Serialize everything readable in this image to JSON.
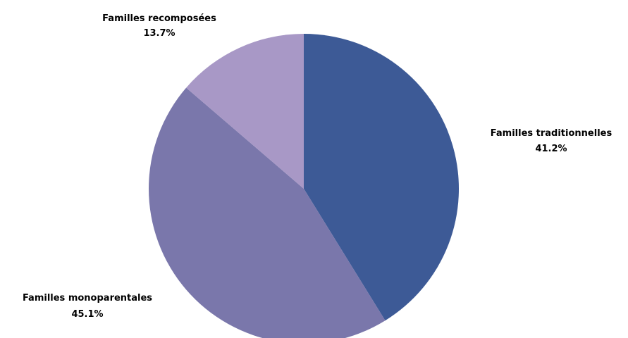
{
  "chart_data": {
    "type": "pie",
    "title": "",
    "slices": [
      {
        "label": "Familles traditionnelles",
        "value": 41.2,
        "value_label": "41.2%",
        "color": "#3d5a96"
      },
      {
        "label": "Familles monoparentales",
        "value": 45.1,
        "value_label": "45.1%",
        "color": "#7a77ab"
      },
      {
        "label": "Familles recomposées",
        "value": 13.7,
        "value_label": "13.7%",
        "color": "#a898c6"
      }
    ],
    "legend": "none",
    "start_angle": "12 o'clock",
    "direction": "clockwise"
  }
}
